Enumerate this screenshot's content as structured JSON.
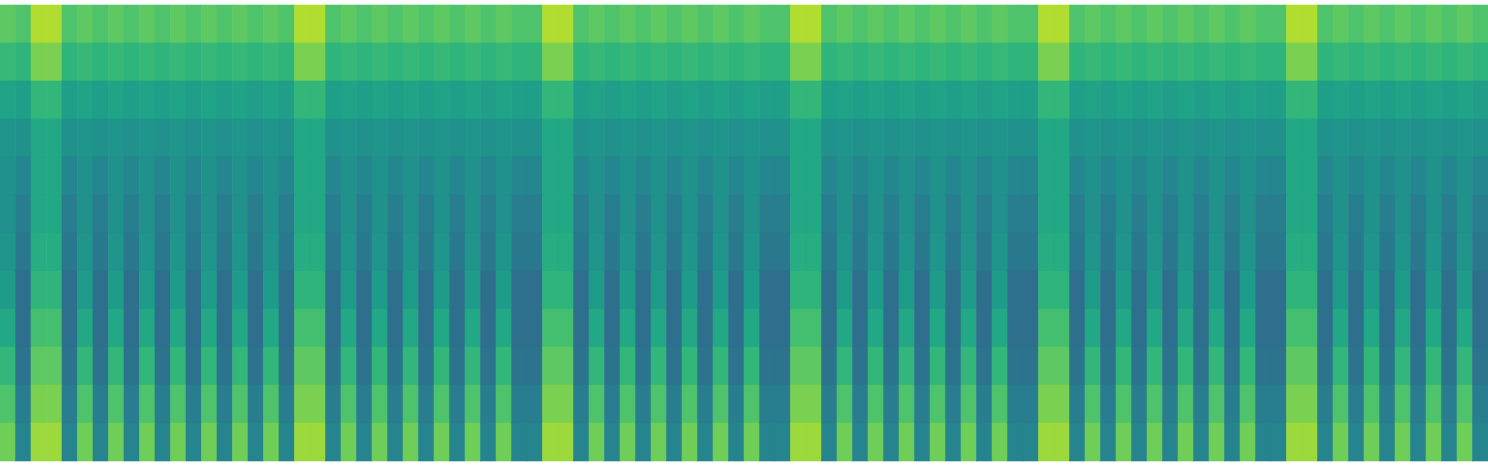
{
  "chart_data": {
    "type": "heatmap",
    "tick_labels": false,
    "color": "viridis",
    "zlim": [
      0,
      1
    ],
    "z": [
      [
        0.75,
        0.72,
        0.88,
        0.88,
        0.72,
        0.75,
        0.72,
        0.75,
        0.72,
        0.75,
        0.72,
        0.75,
        0.72,
        0.75,
        0.72,
        0.75,
        0.72,
        0.75,
        0.72,
        0.88,
        0.88,
        0.72,
        0.75,
        0.72,
        0.75,
        0.72,
        0.75,
        0.72,
        0.75,
        0.72,
        0.75,
        0.72,
        0.75,
        0.72,
        0.72,
        0.88,
        0.88,
        0.72,
        0.75,
        0.72,
        0.75,
        0.72,
        0.75,
        0.72,
        0.75,
        0.72,
        0.75,
        0.72,
        0.75,
        0.72,
        0.72,
        0.88,
        0.88,
        0.72,
        0.75,
        0.72,
        0.75,
        0.72,
        0.75,
        0.72,
        0.75,
        0.72,
        0.75,
        0.72,
        0.75,
        0.72,
        0.72,
        0.88,
        0.88,
        0.72,
        0.75,
        0.72,
        0.75,
        0.72,
        0.75,
        0.72,
        0.75,
        0.72,
        0.75,
        0.72,
        0.75,
        0.72,
        0.72,
        0.88,
        0.88,
        0.72,
        0.75,
        0.72,
        0.75,
        0.72,
        0.75,
        0.72,
        0.75,
        0.72,
        0.75,
        0.72
      ],
      [
        0.67,
        0.65,
        0.8,
        0.8,
        0.65,
        0.67,
        0.65,
        0.67,
        0.65,
        0.67,
        0.65,
        0.67,
        0.65,
        0.67,
        0.65,
        0.67,
        0.65,
        0.67,
        0.65,
        0.8,
        0.8,
        0.65,
        0.67,
        0.65,
        0.67,
        0.65,
        0.67,
        0.65,
        0.67,
        0.65,
        0.67,
        0.65,
        0.67,
        0.65,
        0.65,
        0.8,
        0.8,
        0.65,
        0.67,
        0.65,
        0.67,
        0.65,
        0.67,
        0.65,
        0.67,
        0.65,
        0.67,
        0.65,
        0.67,
        0.65,
        0.65,
        0.8,
        0.8,
        0.65,
        0.67,
        0.65,
        0.67,
        0.65,
        0.67,
        0.65,
        0.67,
        0.65,
        0.67,
        0.65,
        0.67,
        0.65,
        0.65,
        0.8,
        0.8,
        0.65,
        0.67,
        0.65,
        0.67,
        0.65,
        0.67,
        0.65,
        0.67,
        0.65,
        0.67,
        0.65,
        0.67,
        0.65,
        0.65,
        0.8,
        0.8,
        0.65,
        0.67,
        0.65,
        0.67,
        0.65,
        0.67,
        0.65,
        0.67,
        0.65,
        0.67,
        0.65
      ],
      [
        0.58,
        0.56,
        0.66,
        0.66,
        0.56,
        0.58,
        0.56,
        0.58,
        0.56,
        0.58,
        0.56,
        0.58,
        0.56,
        0.58,
        0.56,
        0.58,
        0.56,
        0.58,
        0.56,
        0.66,
        0.66,
        0.56,
        0.58,
        0.56,
        0.58,
        0.56,
        0.58,
        0.56,
        0.58,
        0.56,
        0.58,
        0.56,
        0.58,
        0.56,
        0.56,
        0.66,
        0.66,
        0.56,
        0.58,
        0.56,
        0.58,
        0.56,
        0.58,
        0.56,
        0.58,
        0.56,
        0.58,
        0.56,
        0.58,
        0.56,
        0.56,
        0.66,
        0.66,
        0.56,
        0.58,
        0.56,
        0.58,
        0.56,
        0.58,
        0.56,
        0.58,
        0.56,
        0.58,
        0.56,
        0.58,
        0.56,
        0.56,
        0.66,
        0.66,
        0.56,
        0.58,
        0.56,
        0.58,
        0.56,
        0.58,
        0.56,
        0.58,
        0.56,
        0.58,
        0.56,
        0.58,
        0.56,
        0.56,
        0.66,
        0.66,
        0.56,
        0.58,
        0.56,
        0.58,
        0.56,
        0.58,
        0.56,
        0.58,
        0.56,
        0.58,
        0.56
      ],
      [
        0.52,
        0.5,
        0.6,
        0.6,
        0.5,
        0.52,
        0.5,
        0.52,
        0.5,
        0.52,
        0.5,
        0.52,
        0.5,
        0.52,
        0.5,
        0.52,
        0.5,
        0.52,
        0.5,
        0.6,
        0.6,
        0.5,
        0.52,
        0.5,
        0.52,
        0.5,
        0.52,
        0.5,
        0.52,
        0.5,
        0.52,
        0.5,
        0.52,
        0.5,
        0.5,
        0.6,
        0.6,
        0.5,
        0.52,
        0.5,
        0.52,
        0.5,
        0.52,
        0.5,
        0.52,
        0.5,
        0.52,
        0.5,
        0.52,
        0.5,
        0.5,
        0.6,
        0.6,
        0.5,
        0.52,
        0.5,
        0.52,
        0.5,
        0.52,
        0.5,
        0.52,
        0.5,
        0.52,
        0.5,
        0.52,
        0.5,
        0.5,
        0.6,
        0.6,
        0.5,
        0.52,
        0.5,
        0.52,
        0.5,
        0.52,
        0.5,
        0.52,
        0.5,
        0.52,
        0.5,
        0.52,
        0.5,
        0.5,
        0.6,
        0.6,
        0.5,
        0.52,
        0.5,
        0.52,
        0.5,
        0.52,
        0.5,
        0.52,
        0.5,
        0.52,
        0.5
      ],
      [
        0.5,
        0.46,
        0.6,
        0.6,
        0.46,
        0.5,
        0.46,
        0.5,
        0.46,
        0.5,
        0.46,
        0.5,
        0.46,
        0.5,
        0.46,
        0.5,
        0.46,
        0.5,
        0.46,
        0.6,
        0.6,
        0.46,
        0.5,
        0.46,
        0.5,
        0.46,
        0.5,
        0.46,
        0.5,
        0.46,
        0.5,
        0.46,
        0.5,
        0.46,
        0.46,
        0.6,
        0.6,
        0.46,
        0.5,
        0.46,
        0.5,
        0.46,
        0.5,
        0.46,
        0.5,
        0.46,
        0.5,
        0.46,
        0.5,
        0.46,
        0.46,
        0.6,
        0.6,
        0.46,
        0.5,
        0.46,
        0.5,
        0.46,
        0.5,
        0.46,
        0.5,
        0.46,
        0.5,
        0.46,
        0.5,
        0.46,
        0.46,
        0.6,
        0.6,
        0.46,
        0.5,
        0.46,
        0.5,
        0.46,
        0.5,
        0.46,
        0.5,
        0.46,
        0.5,
        0.46,
        0.5,
        0.46,
        0.46,
        0.6,
        0.6,
        0.46,
        0.5,
        0.46,
        0.5,
        0.46,
        0.5,
        0.46,
        0.5,
        0.46,
        0.5,
        0.46
      ],
      [
        0.5,
        0.42,
        0.6,
        0.6,
        0.42,
        0.5,
        0.42,
        0.5,
        0.42,
        0.5,
        0.42,
        0.5,
        0.42,
        0.5,
        0.42,
        0.5,
        0.42,
        0.5,
        0.42,
        0.6,
        0.6,
        0.42,
        0.5,
        0.42,
        0.5,
        0.42,
        0.5,
        0.42,
        0.5,
        0.42,
        0.5,
        0.42,
        0.5,
        0.42,
        0.42,
        0.6,
        0.6,
        0.42,
        0.5,
        0.42,
        0.5,
        0.42,
        0.5,
        0.42,
        0.5,
        0.42,
        0.5,
        0.42,
        0.5,
        0.42,
        0.42,
        0.6,
        0.6,
        0.42,
        0.5,
        0.42,
        0.5,
        0.42,
        0.5,
        0.42,
        0.5,
        0.42,
        0.5,
        0.42,
        0.5,
        0.42,
        0.42,
        0.6,
        0.6,
        0.42,
        0.5,
        0.42,
        0.5,
        0.42,
        0.5,
        0.42,
        0.5,
        0.42,
        0.5,
        0.42,
        0.5,
        0.42,
        0.42,
        0.6,
        0.6,
        0.42,
        0.5,
        0.42,
        0.5,
        0.42,
        0.5,
        0.42,
        0.5,
        0.42,
        0.5,
        0.42
      ],
      [
        0.52,
        0.4,
        0.62,
        0.62,
        0.4,
        0.52,
        0.4,
        0.52,
        0.4,
        0.52,
        0.4,
        0.52,
        0.4,
        0.52,
        0.4,
        0.52,
        0.4,
        0.52,
        0.4,
        0.62,
        0.62,
        0.4,
        0.52,
        0.4,
        0.52,
        0.4,
        0.52,
        0.4,
        0.52,
        0.4,
        0.52,
        0.4,
        0.52,
        0.4,
        0.4,
        0.62,
        0.62,
        0.4,
        0.52,
        0.4,
        0.52,
        0.4,
        0.52,
        0.4,
        0.52,
        0.4,
        0.52,
        0.4,
        0.52,
        0.4,
        0.4,
        0.62,
        0.62,
        0.4,
        0.52,
        0.4,
        0.52,
        0.4,
        0.52,
        0.4,
        0.52,
        0.4,
        0.52,
        0.4,
        0.52,
        0.4,
        0.4,
        0.62,
        0.62,
        0.4,
        0.52,
        0.4,
        0.52,
        0.4,
        0.52,
        0.4,
        0.52,
        0.4,
        0.52,
        0.4,
        0.52,
        0.4,
        0.4,
        0.62,
        0.62,
        0.4,
        0.52,
        0.4,
        0.52,
        0.4,
        0.52,
        0.4,
        0.52,
        0.4,
        0.52,
        0.4
      ],
      [
        0.55,
        0.36,
        0.65,
        0.65,
        0.36,
        0.55,
        0.36,
        0.55,
        0.36,
        0.55,
        0.36,
        0.55,
        0.36,
        0.55,
        0.36,
        0.55,
        0.36,
        0.55,
        0.36,
        0.65,
        0.65,
        0.36,
        0.55,
        0.36,
        0.55,
        0.36,
        0.55,
        0.36,
        0.55,
        0.36,
        0.55,
        0.36,
        0.55,
        0.36,
        0.36,
        0.65,
        0.65,
        0.36,
        0.55,
        0.36,
        0.55,
        0.36,
        0.55,
        0.36,
        0.55,
        0.36,
        0.55,
        0.36,
        0.55,
        0.36,
        0.36,
        0.65,
        0.65,
        0.36,
        0.55,
        0.36,
        0.55,
        0.36,
        0.55,
        0.36,
        0.55,
        0.36,
        0.55,
        0.36,
        0.55,
        0.36,
        0.36,
        0.65,
        0.65,
        0.36,
        0.55,
        0.36,
        0.55,
        0.36,
        0.55,
        0.36,
        0.55,
        0.36,
        0.55,
        0.36,
        0.55,
        0.36,
        0.36,
        0.65,
        0.65,
        0.36,
        0.55,
        0.36,
        0.55,
        0.36,
        0.55,
        0.36,
        0.55,
        0.36,
        0.55,
        0.36
      ],
      [
        0.6,
        0.36,
        0.7,
        0.7,
        0.36,
        0.6,
        0.36,
        0.6,
        0.36,
        0.6,
        0.36,
        0.6,
        0.36,
        0.6,
        0.36,
        0.6,
        0.36,
        0.6,
        0.36,
        0.7,
        0.7,
        0.36,
        0.6,
        0.36,
        0.6,
        0.36,
        0.6,
        0.36,
        0.6,
        0.36,
        0.6,
        0.36,
        0.6,
        0.36,
        0.36,
        0.7,
        0.7,
        0.36,
        0.6,
        0.36,
        0.6,
        0.36,
        0.6,
        0.36,
        0.6,
        0.36,
        0.6,
        0.36,
        0.6,
        0.36,
        0.36,
        0.7,
        0.7,
        0.36,
        0.6,
        0.36,
        0.6,
        0.36,
        0.6,
        0.36,
        0.6,
        0.36,
        0.6,
        0.36,
        0.6,
        0.36,
        0.36,
        0.7,
        0.7,
        0.36,
        0.6,
        0.36,
        0.6,
        0.36,
        0.6,
        0.36,
        0.6,
        0.36,
        0.6,
        0.36,
        0.6,
        0.36,
        0.36,
        0.7,
        0.7,
        0.36,
        0.6,
        0.36,
        0.6,
        0.36,
        0.6,
        0.36,
        0.6,
        0.36,
        0.6,
        0.36
      ],
      [
        0.66,
        0.38,
        0.75,
        0.75,
        0.38,
        0.66,
        0.38,
        0.66,
        0.38,
        0.66,
        0.38,
        0.66,
        0.38,
        0.66,
        0.38,
        0.66,
        0.38,
        0.66,
        0.38,
        0.75,
        0.75,
        0.38,
        0.66,
        0.38,
        0.66,
        0.38,
        0.66,
        0.38,
        0.66,
        0.38,
        0.66,
        0.38,
        0.66,
        0.38,
        0.38,
        0.75,
        0.75,
        0.38,
        0.66,
        0.38,
        0.66,
        0.38,
        0.66,
        0.38,
        0.66,
        0.38,
        0.66,
        0.38,
        0.66,
        0.38,
        0.38,
        0.75,
        0.75,
        0.38,
        0.66,
        0.38,
        0.66,
        0.38,
        0.66,
        0.38,
        0.66,
        0.38,
        0.66,
        0.38,
        0.66,
        0.38,
        0.38,
        0.75,
        0.75,
        0.38,
        0.66,
        0.38,
        0.66,
        0.38,
        0.66,
        0.38,
        0.66,
        0.38,
        0.66,
        0.38,
        0.66,
        0.38,
        0.38,
        0.75,
        0.75,
        0.38,
        0.66,
        0.38,
        0.66,
        0.38,
        0.66,
        0.38,
        0.66,
        0.38,
        0.66,
        0.38
      ],
      [
        0.72,
        0.42,
        0.8,
        0.8,
        0.42,
        0.72,
        0.42,
        0.72,
        0.42,
        0.72,
        0.42,
        0.72,
        0.42,
        0.72,
        0.42,
        0.72,
        0.42,
        0.72,
        0.42,
        0.8,
        0.8,
        0.42,
        0.72,
        0.42,
        0.72,
        0.42,
        0.72,
        0.42,
        0.72,
        0.42,
        0.72,
        0.42,
        0.72,
        0.42,
        0.42,
        0.8,
        0.8,
        0.42,
        0.72,
        0.42,
        0.72,
        0.42,
        0.72,
        0.42,
        0.72,
        0.42,
        0.72,
        0.42,
        0.72,
        0.42,
        0.42,
        0.8,
        0.8,
        0.42,
        0.72,
        0.42,
        0.72,
        0.42,
        0.72,
        0.42,
        0.72,
        0.42,
        0.72,
        0.42,
        0.72,
        0.42,
        0.42,
        0.8,
        0.8,
        0.42,
        0.72,
        0.42,
        0.72,
        0.42,
        0.72,
        0.42,
        0.72,
        0.42,
        0.72,
        0.42,
        0.72,
        0.42,
        0.42,
        0.8,
        0.8,
        0.42,
        0.72,
        0.42,
        0.72,
        0.42,
        0.72,
        0.42,
        0.72,
        0.42,
        0.72,
        0.42
      ],
      [
        0.78,
        0.45,
        0.85,
        0.85,
        0.45,
        0.78,
        0.45,
        0.78,
        0.45,
        0.78,
        0.45,
        0.78,
        0.45,
        0.78,
        0.45,
        0.78,
        0.45,
        0.78,
        0.45,
        0.85,
        0.85,
        0.45,
        0.78,
        0.45,
        0.78,
        0.45,
        0.78,
        0.45,
        0.78,
        0.45,
        0.78,
        0.45,
        0.78,
        0.45,
        0.45,
        0.85,
        0.85,
        0.45,
        0.78,
        0.45,
        0.78,
        0.45,
        0.78,
        0.45,
        0.78,
        0.45,
        0.78,
        0.45,
        0.78,
        0.45,
        0.45,
        0.85,
        0.85,
        0.45,
        0.78,
        0.45,
        0.78,
        0.45,
        0.78,
        0.45,
        0.78,
        0.45,
        0.78,
        0.45,
        0.78,
        0.45,
        0.45,
        0.85,
        0.85,
        0.45,
        0.78,
        0.45,
        0.78,
        0.45,
        0.78,
        0.45,
        0.78,
        0.45,
        0.78,
        0.45,
        0.78,
        0.45,
        0.45,
        0.85,
        0.85,
        0.45,
        0.78,
        0.45,
        0.78,
        0.45,
        0.78,
        0.45,
        0.78,
        0.45,
        0.78,
        0.45
      ]
    ]
  }
}
